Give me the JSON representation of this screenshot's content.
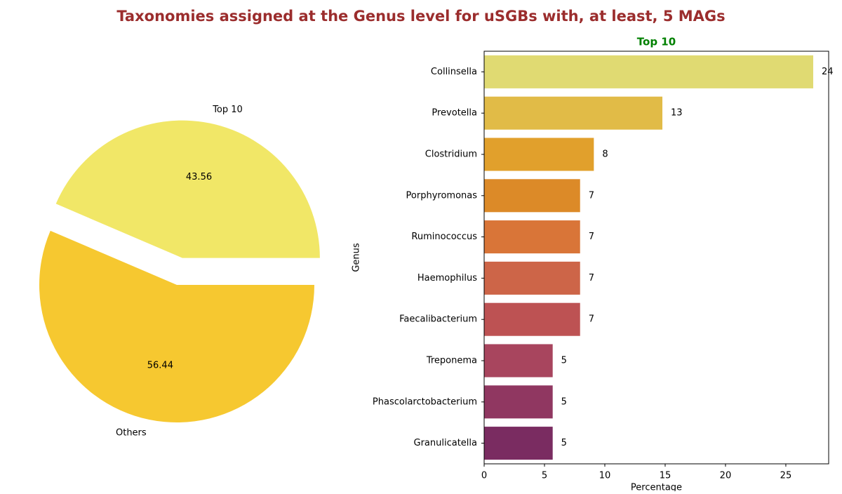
{
  "title": "Taxonomies assigned at the Genus level for uSGBs with, at least, 5 MAGs",
  "chart_data": [
    {
      "type": "pie",
      "labels": [
        "Top 10",
        "Others"
      ],
      "values": [
        43.56,
        56.44
      ],
      "colors": [
        "#f1e767",
        "#f6c830"
      ],
      "explode": [
        0.2,
        0
      ],
      "startangle": 0
    },
    {
      "type": "barh",
      "title": "Top 10",
      "xlabel": "Percentage",
      "ylabel": "Genus",
      "categories": [
        "Collinsella",
        "Prevotella",
        "Clostridium",
        "Porphyromonas",
        "Ruminococcus",
        "Haemophilus",
        "Faecalibacterium",
        "Treponema",
        "Phascolarctobacterium",
        "Granulicatella"
      ],
      "values": [
        27.27,
        14.77,
        9.09,
        7.95,
        7.95,
        7.95,
        7.95,
        5.68,
        5.68,
        5.68
      ],
      "counts": [
        24,
        13,
        8,
        7,
        7,
        7,
        7,
        5,
        5,
        5
      ],
      "colors": [
        "#e0da72",
        "#e1bb47",
        "#e1a02c",
        "#dc8a28",
        "#d97538",
        "#cd6548",
        "#bd5253",
        "#a8455e",
        "#903761",
        "#7a2c61"
      ],
      "xlim": [
        0,
        28.55
      ],
      "xticks": [
        0,
        5,
        10,
        15,
        20,
        25
      ]
    }
  ]
}
